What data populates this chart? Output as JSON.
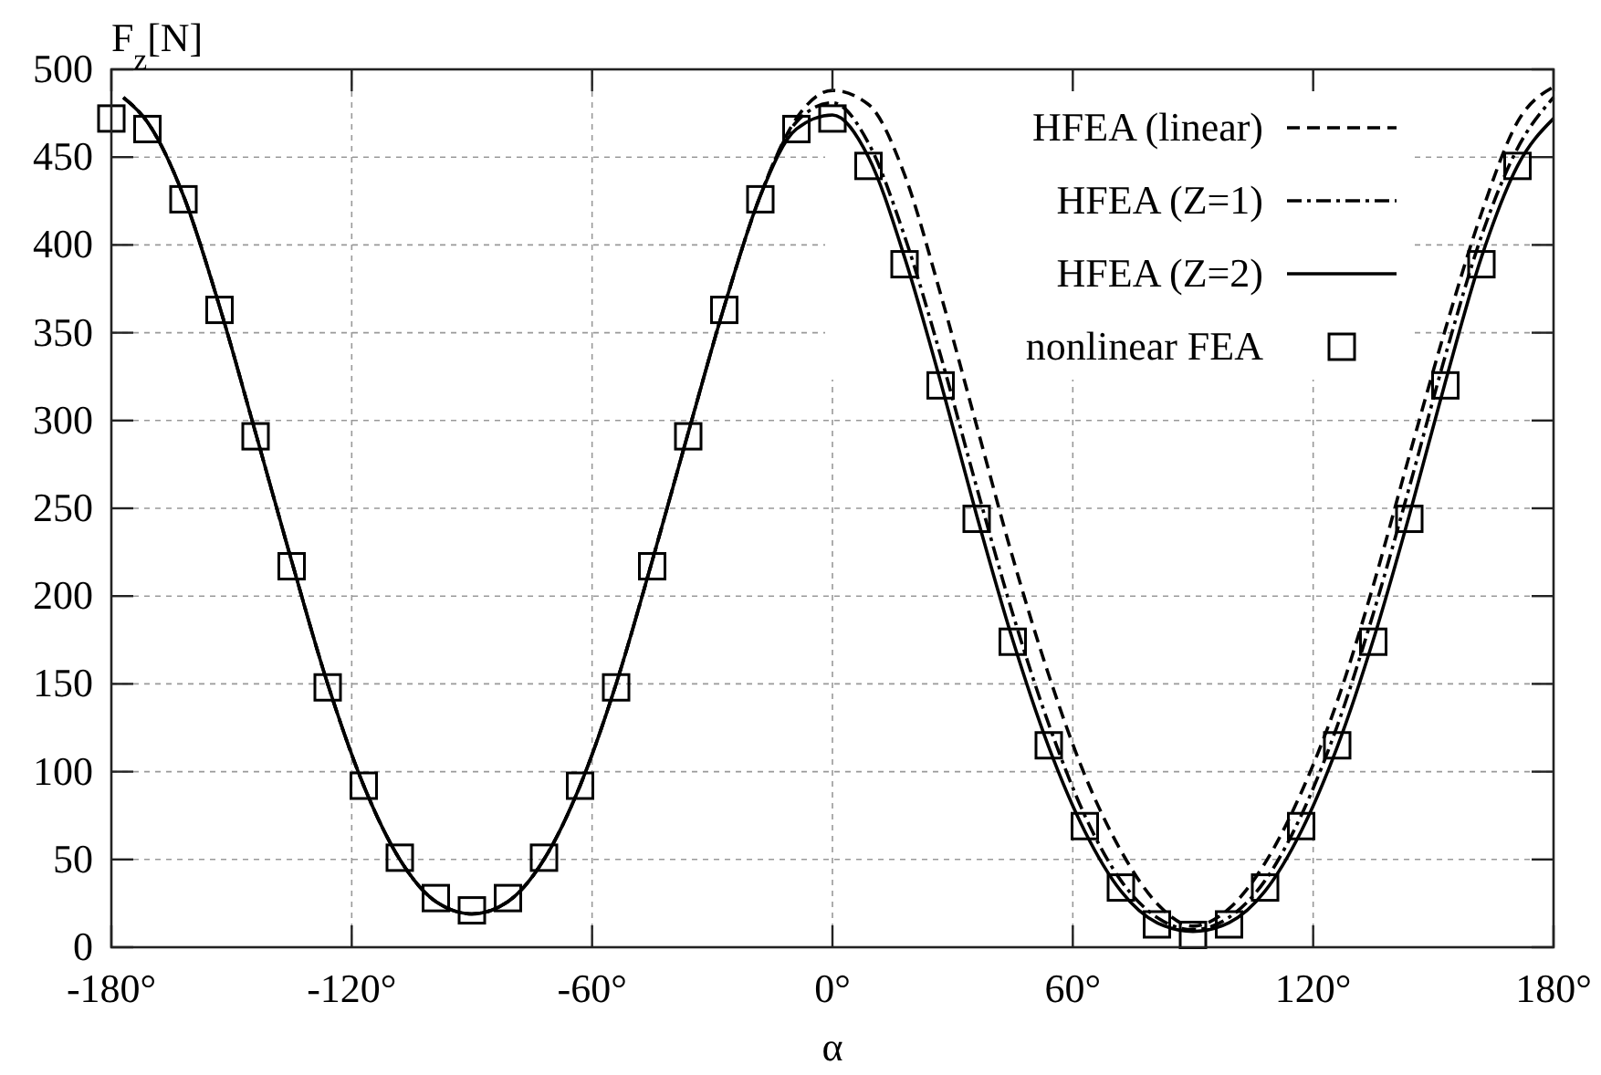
{
  "chart_data": {
    "type": "line",
    "xlabel": "α",
    "ylabel": "F$_{z}$[N]",
    "xlim": [
      -180,
      180
    ],
    "ylim": [
      0,
      500
    ],
    "xticks": [
      {
        "value": -180,
        "label": "-180°"
      },
      {
        "value": -120,
        "label": "-120°"
      },
      {
        "value": -60,
        "label": "-60°"
      },
      {
        "value": 0,
        "label": "0°"
      },
      {
        "value": 60,
        "label": "60°"
      },
      {
        "value": 120,
        "label": "120°"
      },
      {
        "value": 180,
        "label": "180°"
      }
    ],
    "yticks": [
      0,
      50,
      100,
      150,
      200,
      250,
      300,
      350,
      400,
      450,
      500
    ],
    "grid": true,
    "legend": "top right",
    "series": [
      {
        "name": "HFEA (linear)",
        "color": "#000000",
        "line_style": "dashed",
        "x": [
          -177,
          -171,
          -162,
          -153,
          -144,
          -135,
          -126,
          -117,
          -108,
          -99,
          -90,
          -81,
          -72,
          -63,
          -54,
          -45,
          -36,
          -27,
          -18,
          -9,
          0,
          9,
          18,
          27,
          36,
          45,
          54,
          63,
          72,
          81,
          90,
          99,
          108,
          117,
          126,
          135,
          144,
          153,
          162,
          171,
          180
        ],
        "values": [
          484,
          470,
          428,
          365,
          293,
          220,
          150,
          92,
          50,
          26,
          19,
          26,
          50,
          92,
          150,
          220,
          293,
          365,
          428,
          472,
          488,
          480,
          440,
          372,
          297,
          222,
          155,
          98,
          55,
          25,
          12,
          22,
          48,
          88,
          140,
          206,
          280,
          352,
          418,
          470,
          490
        ]
      },
      {
        "name": "HFEA (Z=1)",
        "color": "#000000",
        "line_style": "dashdot",
        "x": [
          -177,
          -171,
          -162,
          -153,
          -144,
          -135,
          -126,
          -117,
          -108,
          -99,
          -90,
          -81,
          -72,
          -63,
          -54,
          -45,
          -36,
          -27,
          -18,
          -9,
          0,
          9,
          18,
          27,
          36,
          45,
          54,
          63,
          72,
          81,
          90,
          99,
          108,
          117,
          126,
          135,
          144,
          153,
          162,
          171,
          180
        ],
        "values": [
          484,
          470,
          428,
          365,
          293,
          220,
          150,
          92,
          50,
          26,
          19,
          26,
          50,
          92,
          150,
          220,
          293,
          365,
          428,
          470,
          481,
          458,
          405,
          337,
          262,
          190,
          127,
          75,
          38,
          17,
          10,
          17,
          38,
          75,
          126,
          190,
          262,
          337,
          405,
          455,
          484
        ]
      },
      {
        "name": "HFEA (Z=2)",
        "color": "#000000",
        "line_style": "solid",
        "x": [
          -177,
          -171,
          -162,
          -153,
          -144,
          -135,
          -126,
          -117,
          -108,
          -99,
          -90,
          -81,
          -72,
          -63,
          -54,
          -45,
          -36,
          -27,
          -18,
          -9,
          0,
          9,
          18,
          27,
          36,
          45,
          54,
          63,
          72,
          81,
          90,
          99,
          108,
          117,
          126,
          135,
          144,
          153,
          162,
          171,
          180
        ],
        "values": [
          484,
          470,
          428,
          365,
          293,
          220,
          150,
          92,
          50,
          26,
          19,
          26,
          50,
          92,
          150,
          220,
          293,
          365,
          428,
          466,
          474,
          450,
          393,
          322,
          246,
          175,
          114,
          66,
          32,
          14,
          9,
          14,
          32,
          66,
          114,
          175,
          246,
          322,
          393,
          445,
          472
        ]
      },
      {
        "name": "nonlinear FEA",
        "type": "scatter",
        "color": "#000000",
        "marker": "square",
        "x": [
          -180,
          -171,
          -162,
          -153,
          -144,
          -135,
          -126,
          -117,
          -108,
          -99,
          -90,
          -81,
          -72,
          -63,
          -54,
          -45,
          -36,
          -27,
          -18,
          -9,
          0,
          9,
          18,
          27,
          36,
          45,
          54,
          63,
          72,
          81,
          90,
          99,
          108,
          117,
          126,
          135,
          144,
          153,
          162,
          171
        ],
        "values": [
          472,
          466,
          426,
          363,
          291,
          217,
          148,
          92,
          51,
          28,
          21,
          28,
          51,
          92,
          148,
          217,
          291,
          363,
          426,
          466,
          472,
          445,
          389,
          320,
          244,
          174,
          115,
          69,
          34,
          13,
          7,
          13,
          34,
          69,
          115,
          174,
          244,
          320,
          389,
          445
        ]
      }
    ]
  }
}
